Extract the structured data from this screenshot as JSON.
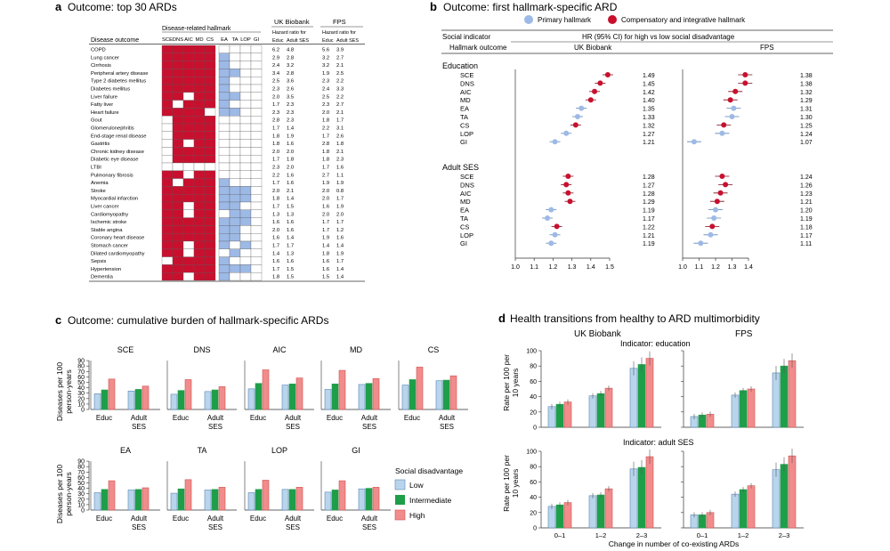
{
  "colors": {
    "red": "#c8102e",
    "blue": "#9db9e6",
    "low": "#b9d5ec",
    "mid": "#1f9e4a",
    "high": "#f28c8c",
    "grid": "#555555"
  },
  "panel_a": {
    "letter": "a",
    "title": "Outcome: top 30 ARDs",
    "disease_header": "Disease outcome",
    "hallmark_group": "Disease-related hallmark",
    "hallmarks": [
      "SCE",
      "DNS",
      "AIC",
      "MD",
      "CS",
      "EA",
      "TA",
      "LOP",
      "GI"
    ],
    "ukb_header": "UK Biobank",
    "fps_header": "FPS",
    "hr_label_1": "Hazard ratio for",
    "hr_label_2": "Hazard ratio for",
    "sub_educ_1": "Educ",
    "sub_ses_1": "Adult SES",
    "sub_educ_2": "Educ",
    "sub_ses_2": "Adult SES",
    "rows": [
      {
        "d": "COPD",
        "h": "RRRRR0000",
        "v": [
          "6.2",
          "4.8",
          "5.6",
          "3.9"
        ]
      },
      {
        "d": "Lung cancer",
        "h": "RRRRRB000",
        "v": [
          "2.9",
          "2.8",
          "3.2",
          "2.7"
        ]
      },
      {
        "d": "Cirrhosis",
        "h": "RRRRRB000",
        "v": [
          "2.4",
          "3.2",
          "3.2",
          "2.1"
        ]
      },
      {
        "d": "Peripheral artery disease",
        "h": "RRRRRBB00",
        "v": [
          "3.4",
          "2.8",
          "1.9",
          "2.5"
        ]
      },
      {
        "d": "Type 2 diabetes mellitus",
        "h": "RRRRRB000",
        "v": [
          "2.5",
          "3.6",
          "2.3",
          "2.2"
        ]
      },
      {
        "d": "Diabetes mellitus",
        "h": "RRRRRB000",
        "v": [
          "2.3",
          "2.6",
          "2.4",
          "3.3"
        ]
      },
      {
        "d": "Liver failure",
        "h": "RR0RRBB00",
        "v": [
          "2.0",
          "3.5",
          "2.5",
          "2.2"
        ]
      },
      {
        "d": "Fatty liver",
        "h": "R0RRRB000",
        "v": [
          "1.7",
          "2.3",
          "2.3",
          "2.7"
        ]
      },
      {
        "d": "Heart failure",
        "h": "RRRR0BB00",
        "v": [
          "2.3",
          "2.3",
          "2.0",
          "2.1"
        ]
      },
      {
        "d": "Gout",
        "h": "0RRRR0000",
        "v": [
          "2.8",
          "2.3",
          "1.8",
          "1.7"
        ]
      },
      {
        "d": "Glomerulonephritis",
        "h": "0RRRR0000",
        "v": [
          "1.7",
          "1.4",
          "2.2",
          "3.1"
        ]
      },
      {
        "d": "End-stage renal disease",
        "h": "0RRRR0000",
        "v": [
          "1.8",
          "1.9",
          "1.7",
          "2.6"
        ]
      },
      {
        "d": "Gastritis",
        "h": "0R0RR0000",
        "v": [
          "1.8",
          "1.6",
          "2.8",
          "1.8"
        ]
      },
      {
        "d": "Chronic kidney disease",
        "h": "0RRRR0000",
        "v": [
          "2.0",
          "2.0",
          "1.8",
          "2.1"
        ]
      },
      {
        "d": "Diabetic eye disease",
        "h": "0RRRR0000",
        "v": [
          "1.7",
          "1.8",
          "1.8",
          "2.3"
        ]
      },
      {
        "d": "LTBI",
        "h": "000000000",
        "v": [
          "2.3",
          "2.0",
          "1.7",
          "1.6"
        ]
      },
      {
        "d": "Pulmonary fibrosis",
        "h": "RR0RR0000",
        "v": [
          "2.2",
          "1.6",
          "2.7",
          "1.1"
        ]
      },
      {
        "d": "Anemia",
        "h": "R0RRRB000",
        "v": [
          "1.7",
          "1.6",
          "1.9",
          "1.9"
        ]
      },
      {
        "d": "Stroke",
        "h": "RRRRRBBB0",
        "v": [
          "2.0",
          "2.1",
          "2.0",
          "0.8"
        ]
      },
      {
        "d": "Myocardial infarction",
        "h": "RRRRRBBB0",
        "v": [
          "1.8",
          "1.4",
          "2.0",
          "1.7"
        ]
      },
      {
        "d": "Liver cancer",
        "h": "RR0RRBB00",
        "v": [
          "1.7",
          "1.5",
          "1.6",
          "1.9"
        ]
      },
      {
        "d": "Cardiomyopathy",
        "h": "RR0RR0BB0",
        "v": [
          "1.3",
          "1.3",
          "2.0",
          "2.0"
        ]
      },
      {
        "d": "Ischemic stroke",
        "h": "RRRRRBBB0",
        "v": [
          "1.6",
          "1.6",
          "1.7",
          "1.7"
        ]
      },
      {
        "d": "Stable angina",
        "h": "RRRRRBB00",
        "v": [
          "2.0",
          "1.6",
          "1.7",
          "1.2"
        ]
      },
      {
        "d": "Coronary heart disease",
        "h": "RRRRRBB00",
        "v": [
          "1.6",
          "1.4",
          "1.9",
          "1.6"
        ]
      },
      {
        "d": "Stomach cancer",
        "h": "RR0RRB0B0",
        "v": [
          "1.7",
          "1.7",
          "1.4",
          "1.4"
        ]
      },
      {
        "d": "Dilated cardiomyopathy",
        "h": "RR0RR0B00",
        "v": [
          "1.4",
          "1.3",
          "1.8",
          "1.9"
        ]
      },
      {
        "d": "Sepsis",
        "h": "0RRRRB000",
        "v": [
          "1.6",
          "1.6",
          "1.6",
          "1.7"
        ]
      },
      {
        "d": "Hypertension",
        "h": "RRRRRBBB0",
        "v": [
          "1.7",
          "1.5",
          "1.6",
          "1.4"
        ]
      },
      {
        "d": "Dementia",
        "h": "RR0RRB000",
        "v": [
          "1.8",
          "1.5",
          "1.5",
          "1.4"
        ]
      }
    ]
  },
  "panel_b": {
    "letter": "b",
    "title": "Outcome: first hallmark-specific ARD",
    "legend_primary": "Primary hallmark",
    "legend_comp": "Compensatory and integrative hallmark",
    "social_indicator": "Social indicator",
    "hr_title": "HR (95% CI) for high vs low social disadvantage",
    "hallmark_outcome": "Hallmark outcome",
    "ukb": "UK Biobank",
    "fps": "FPS",
    "axis_ukb": [
      "1.0",
      "1.1",
      "1.2",
      "1.3",
      "1.4",
      "1.5"
    ],
    "axis_fps": [
      "1.0",
      "1.1",
      "1.2",
      "1.3",
      "1.4"
    ],
    "groups": [
      {
        "name": "Education",
        "rows": [
          {
            "h": "SCE",
            "t": "c",
            "ukb": 1.49,
            "ukb_lbl": "1.49",
            "fps": 1.38,
            "fps_lbl": "1.38"
          },
          {
            "h": "DNS",
            "t": "c",
            "ukb": 1.45,
            "ukb_lbl": "1.45",
            "fps": 1.38,
            "fps_lbl": "1.38"
          },
          {
            "h": "AIC",
            "t": "c",
            "ukb": 1.42,
            "ukb_lbl": "1.42",
            "fps": 1.32,
            "fps_lbl": "1.32"
          },
          {
            "h": "MD",
            "t": "c",
            "ukb": 1.4,
            "ukb_lbl": "1.40",
            "fps": 1.29,
            "fps_lbl": "1.29"
          },
          {
            "h": "EA",
            "t": "p",
            "ukb": 1.35,
            "ukb_lbl": "1.35",
            "fps": 1.31,
            "fps_lbl": "1.31"
          },
          {
            "h": "TA",
            "t": "p",
            "ukb": 1.33,
            "ukb_lbl": "1.33",
            "fps": 1.3,
            "fps_lbl": "1.30"
          },
          {
            "h": "CS",
            "t": "c",
            "ukb": 1.32,
            "ukb_lbl": "1.32",
            "fps": 1.25,
            "fps_lbl": "1.25"
          },
          {
            "h": "LOP",
            "t": "p",
            "ukb": 1.27,
            "ukb_lbl": "1.27",
            "fps": 1.24,
            "fps_lbl": "1.24"
          },
          {
            "h": "GI",
            "t": "p",
            "ukb": 1.21,
            "ukb_lbl": "1.21",
            "fps": 1.07,
            "fps_lbl": "1.07"
          }
        ]
      },
      {
        "name": "Adult SES",
        "rows": [
          {
            "h": "SCE",
            "t": "c",
            "ukb": 1.28,
            "ukb_lbl": "1.28",
            "fps": 1.24,
            "fps_lbl": "1.24"
          },
          {
            "h": "DNS",
            "t": "c",
            "ukb": 1.27,
            "ukb_lbl": "1.27",
            "fps": 1.26,
            "fps_lbl": "1.26"
          },
          {
            "h": "AIC",
            "t": "c",
            "ukb": 1.28,
            "ukb_lbl": "1.28",
            "fps": 1.23,
            "fps_lbl": "1.23"
          },
          {
            "h": "MD",
            "t": "c",
            "ukb": 1.29,
            "ukb_lbl": "1.29",
            "fps": 1.21,
            "fps_lbl": "1.21"
          },
          {
            "h": "EA",
            "t": "p",
            "ukb": 1.19,
            "ukb_lbl": "1.19",
            "fps": 1.2,
            "fps_lbl": "1.20"
          },
          {
            "h": "TA",
            "t": "p",
            "ukb": 1.17,
            "ukb_lbl": "1.17",
            "fps": 1.19,
            "fps_lbl": "1.19"
          },
          {
            "h": "CS",
            "t": "c",
            "ukb": 1.22,
            "ukb_lbl": "1.22",
            "fps": 1.18,
            "fps_lbl": "1.18"
          },
          {
            "h": "LOP",
            "t": "p",
            "ukb": 1.21,
            "ukb_lbl": "1.21",
            "fps": 1.17,
            "fps_lbl": "1.17"
          },
          {
            "h": "GI",
            "t": "p",
            "ukb": 1.19,
            "ukb_lbl": "1.19",
            "fps": 1.11,
            "fps_lbl": "1.11"
          }
        ]
      }
    ]
  },
  "panel_c": {
    "letter": "c",
    "title": "Outcome: cumulative burden of hallmark-specific ARDs",
    "ylabel_1": "Diseases per 100",
    "ylabel_2": "person-years",
    "yticks_top": [
      "0",
      "10",
      "20",
      "30",
      "40",
      "50",
      "60",
      "70",
      "80",
      "90"
    ],
    "yticks_bottom": [
      "0",
      "10",
      "20",
      "30",
      "40",
      "50",
      "60",
      "70",
      "80",
      "90"
    ],
    "legend_title": "Social disadvantage",
    "legend": [
      "Low",
      "Intermediate",
      "High"
    ],
    "subs": [
      {
        "name": "SCE",
        "educ": [
          29,
          36,
          56
        ],
        "ses": [
          34,
          37,
          43
        ]
      },
      {
        "name": "DNS",
        "educ": [
          28,
          35,
          55
        ],
        "ses": [
          33,
          36,
          42
        ]
      },
      {
        "name": "AIC",
        "educ": [
          38,
          48,
          73
        ],
        "ses": [
          45,
          47,
          58
        ]
      },
      {
        "name": "MD",
        "educ": [
          37,
          47,
          72
        ],
        "ses": [
          46,
          48,
          57
        ]
      },
      {
        "name": "CS",
        "educ": [
          45,
          55,
          78
        ],
        "ses": [
          53,
          54,
          62
        ]
      },
      {
        "name": "EA",
        "educ": [
          32,
          38,
          54
        ],
        "ses": [
          37,
          38,
          41
        ]
      },
      {
        "name": "TA",
        "educ": [
          31,
          39,
          56
        ],
        "ses": [
          37,
          38,
          42
        ]
      },
      {
        "name": "LOP",
        "educ": [
          32,
          38,
          55
        ],
        "ses": [
          38,
          38,
          42
        ]
      },
      {
        "name": "GI",
        "educ": [
          33,
          37,
          54
        ],
        "ses": [
          39,
          40,
          42
        ]
      }
    ],
    "xcats": [
      "Educ",
      "Adult",
      "SES"
    ]
  },
  "panel_d": {
    "letter": "d",
    "title": "Health transitions from healthy to ARD multimorbidity",
    "ukb": "UK Biobank",
    "fps": "FPS",
    "ind_edu": "Indicator: education",
    "ind_ses": "Indicator: adult SES",
    "ylabel_1": "Rate per 100 per",
    "ylabel_2": "10 years",
    "yticks_top": [
      "0",
      "20",
      "40",
      "60",
      "80",
      "100"
    ],
    "yticks_bottom": [
      "0",
      "20",
      "40",
      "60",
      "80",
      "100"
    ],
    "xcats": [
      "0–1",
      "1–2",
      "2–3"
    ],
    "xlabel": "Change in number of co-existing ARDs",
    "subs": [
      {
        "id": "ukb-edu",
        "vals": [
          [
            27,
            30,
            33
          ],
          [
            41,
            44,
            51
          ],
          [
            77,
            82,
            90
          ]
        ]
      },
      {
        "id": "fps-edu",
        "vals": [
          [
            14,
            16,
            17
          ],
          [
            42,
            48,
            50
          ],
          [
            71,
            80,
            87
          ]
        ]
      },
      {
        "id": "ukb-ses",
        "vals": [
          [
            28,
            30,
            33
          ],
          [
            42,
            43,
            51
          ],
          [
            77,
            79,
            93
          ]
        ]
      },
      {
        "id": "fps-ses",
        "vals": [
          [
            17,
            17,
            20
          ],
          [
            44,
            50,
            55
          ],
          [
            76,
            83,
            94
          ]
        ]
      }
    ]
  },
  "chart_data": [
    {
      "type": "table",
      "title": "Outcome: top 30 ARDs",
      "columns": [
        "Disease outcome",
        "Hallmarks",
        "UK Biobank Educ",
        "UK Biobank Adult SES",
        "FPS Educ",
        "FPS Adult SES"
      ]
    },
    {
      "type": "scatter",
      "title": "Outcome: first hallmark-specific ARD",
      "xlabel": "HR (95% CI) for high vs low social disadvantage",
      "xlim_ukb": [
        1.0,
        1.5
      ],
      "xlim_fps": [
        1.0,
        1.4
      ]
    },
    {
      "type": "bar",
      "title": "Outcome: cumulative burden of hallmark-specific ARDs",
      "ylabel": "Diseases per 100 person-years",
      "ylim": [
        0,
        90
      ],
      "series_names": [
        "Low",
        "Intermediate",
        "High"
      ]
    },
    {
      "type": "bar",
      "title": "Health transitions from healthy to ARD multimorbidity",
      "ylabel": "Rate per 100 per 10 years",
      "ylim": [
        0,
        100
      ],
      "categories": [
        "0–1",
        "1–2",
        "2–3"
      ]
    }
  ]
}
